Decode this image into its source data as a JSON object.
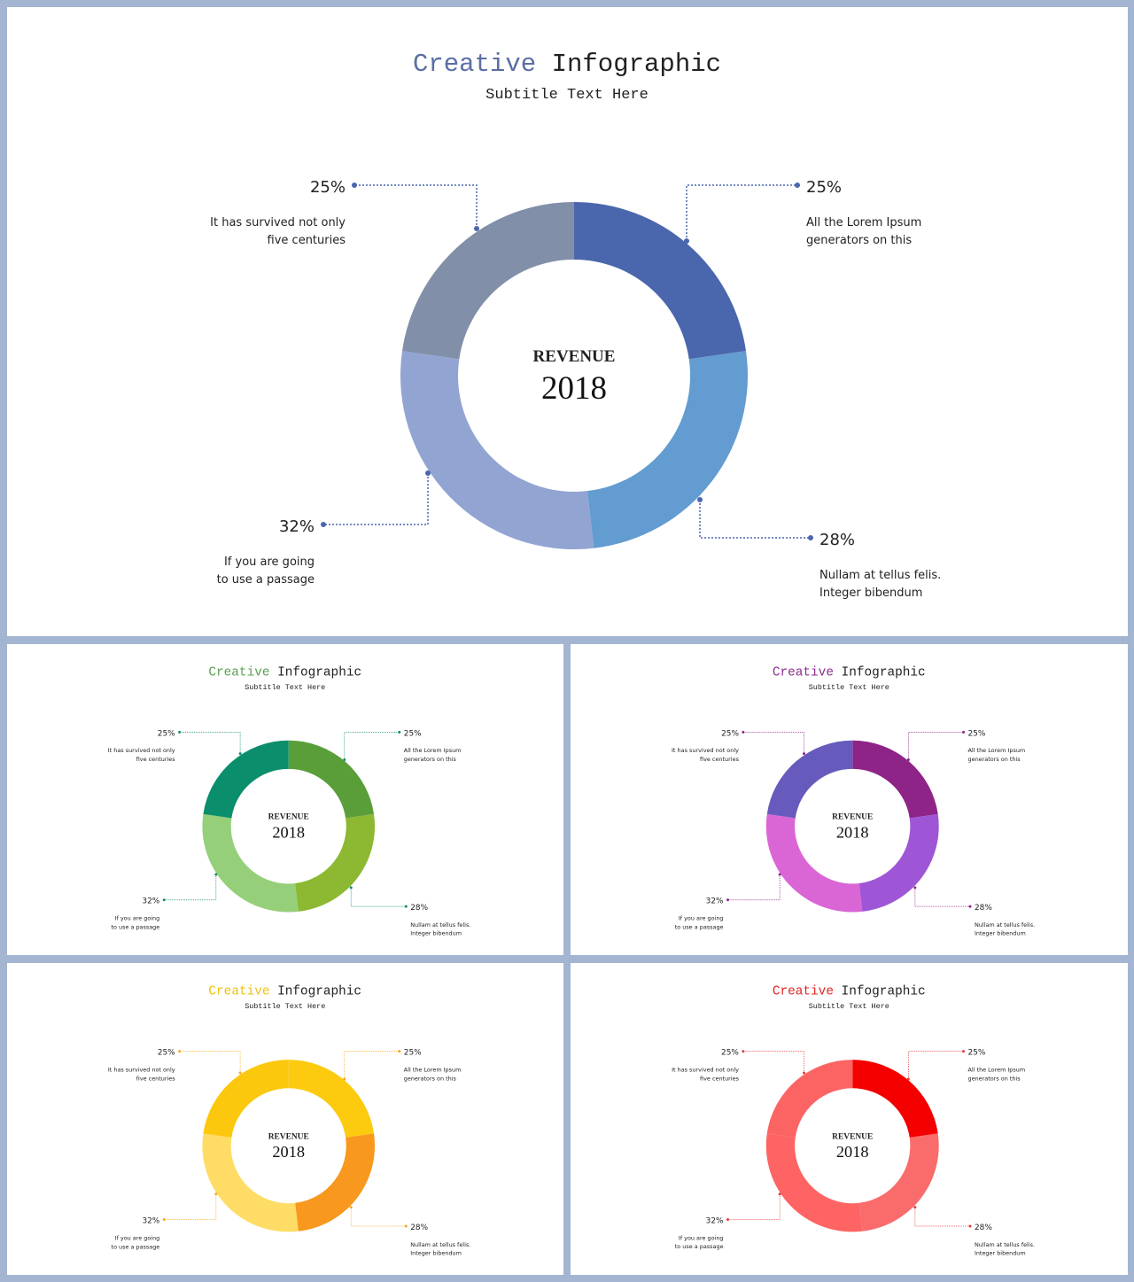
{
  "slides": [
    {
      "title_accent": "Creative",
      "title_rest": "Infographic",
      "subtitle": "Subtitle Text Here",
      "accent_color": "#5b6ea3",
      "center_label": "REVENUE",
      "center_year": "2018",
      "segment_colors": [
        "#4a67ad",
        "#629cd0",
        "#92a4d2",
        "#818fa8"
      ],
      "leader_color": "#4a67ad"
    },
    {
      "title_accent": "Creative",
      "title_rest": "Infographic",
      "subtitle": "Subtitle Text Here",
      "accent_color": "#5aa152",
      "center_label": "REVENUE",
      "center_year": "2018",
      "segment_colors": [
        "#5a9e3a",
        "#8cb832",
        "#96cf7a",
        "#0a8e6c"
      ],
      "leader_color": "#0a8e6c"
    },
    {
      "title_accent": "Creative",
      "title_rest": "Infographic",
      "subtitle": "Subtitle Text Here",
      "accent_color": "#8a2e8e",
      "center_label": "REVENUE",
      "center_year": "2018",
      "segment_colors": [
        "#8e2488",
        "#9e56d6",
        "#da66d6",
        "#665bbc"
      ],
      "leader_color": "#8e2488"
    },
    {
      "title_accent": "Creative",
      "title_rest": "Infographic",
      "subtitle": "Subtitle Text Here",
      "accent_color": "#f0c010",
      "center_label": "REVENUE",
      "center_year": "2018",
      "segment_colors": [
        "#fccb10",
        "#f8981e",
        "#fedc66",
        "#fcc80e"
      ],
      "leader_color": "#f8a81e"
    },
    {
      "title_accent": "Creative",
      "title_rest": "Infographic",
      "subtitle": "Subtitle Text Here",
      "accent_color": "#e02424",
      "center_label": "REVENUE",
      "center_year": "2018",
      "segment_colors": [
        "#f40000",
        "#fa6c6c",
        "#fe6464",
        "#fc6464"
      ],
      "leader_color": "#e83a3a"
    }
  ],
  "chart_data": [
    {
      "type": "pie",
      "categories": [
        "All the Lorem Ipsum generators on this",
        "Nullam at tellus felis. Integer bibendum",
        "If you are going to use a passage",
        "It has survived not only five centuries"
      ],
      "values": [
        25,
        28,
        32,
        25
      ],
      "labels": [
        "25%",
        "28%",
        "32%",
        "25%"
      ],
      "descriptions": [
        [
          "All the Lorem Ipsum",
          "generators on this"
        ],
        [
          "Nullam at tellus felis.",
          "Integer bibendum"
        ],
        [
          "If you are going",
          "to use a passage"
        ],
        [
          "It has survived  not only",
          "five centuries"
        ]
      ]
    },
    {
      "type": "pie",
      "categories": [
        "All the Lorem Ipsum generators on this",
        "Nullam at tellus felis. Integer bibendum",
        "If you are going to use a passage",
        "It has survived not only five centuries"
      ],
      "values": [
        25,
        28,
        32,
        25
      ],
      "labels": [
        "25%",
        "28%",
        "32%",
        "25%"
      ],
      "descriptions": [
        [
          "All the Lorem Ipsum",
          "generators on this"
        ],
        [
          "Nullam at tellus felis.",
          "Integer bibendum"
        ],
        [
          "If you are going",
          "to use a passage"
        ],
        [
          "It has survived  not only",
          "five centuries"
        ]
      ]
    },
    {
      "type": "pie",
      "categories": [
        "All the Lorem Ipsum generators on this",
        "Nullam at tellus felis. Integer bibendum",
        "If you are going to use a passage",
        "It has survived not only five centuries"
      ],
      "values": [
        25,
        28,
        32,
        25
      ],
      "labels": [
        "25%",
        "28%",
        "32%",
        "25%"
      ],
      "descriptions": [
        [
          "All the Lorem Ipsum",
          "generators on this"
        ],
        [
          "Nullam at tellus felis.",
          "Integer bibendum"
        ],
        [
          "If you are going",
          "to use a passage"
        ],
        [
          "It has survived  not only",
          "five centuries"
        ]
      ]
    },
    {
      "type": "pie",
      "categories": [
        "All the Lorem Ipsum generators on this",
        "Nullam at tellus felis. Integer bibendum",
        "If you are going to use a passage",
        "It has survived not only five centuries"
      ],
      "values": [
        25,
        28,
        32,
        25
      ],
      "labels": [
        "25%",
        "28%",
        "32%",
        "25%"
      ],
      "descriptions": [
        [
          "All the Lorem Ipsum",
          "generators on this"
        ],
        [
          "Nullam at tellus felis.",
          "Integer bibendum"
        ],
        [
          "If you are going",
          "to use a passage"
        ],
        [
          "It has survived  not only",
          "five centuries"
        ]
      ]
    },
    {
      "type": "pie",
      "categories": [
        "All the Lorem Ipsum generators on this",
        "Nullam at tellus felis. Integer bibendum",
        "If you are going to use a passage",
        "It has survived not only five centuries"
      ],
      "values": [
        25,
        28,
        32,
        25
      ],
      "labels": [
        "25%",
        "28%",
        "32%",
        "25%"
      ],
      "descriptions": [
        [
          "All the Lorem Ipsum",
          "generators on this"
        ],
        [
          "Nullam at tellus felis.",
          "Integer bibendum"
        ],
        [
          "If you are going",
          "to use a passage"
        ],
        [
          "It has survived  not only",
          "five centuries"
        ]
      ]
    }
  ]
}
